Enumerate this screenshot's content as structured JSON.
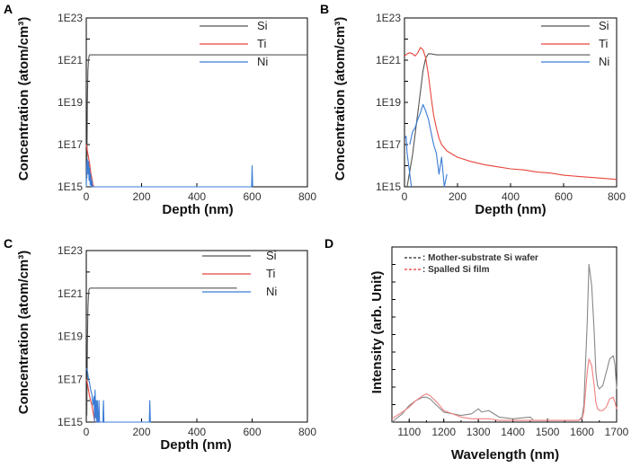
{
  "chart_data": [
    {
      "id": "A",
      "type": "line",
      "panel_label": "A",
      "xlabel": "Depth (nm)",
      "ylabel": "Concentration (atom/cm³)",
      "xlim": [
        0,
        800
      ],
      "ylim_log10": [
        15,
        23
      ],
      "x_ticks": [
        "0",
        "200",
        "400",
        "600",
        "800"
      ],
      "y_ticks": [
        "1E15",
        "1E17",
        "1E19",
        "1E21",
        "1E23"
      ],
      "legend": [
        "Si",
        "Ti",
        "Ni"
      ],
      "series": [
        {
          "name": "Si",
          "color": "#555555",
          "x": [
            2,
            4,
            6,
            8,
            10,
            12,
            15,
            20,
            40,
            100,
            300,
            500,
            700,
            800
          ],
          "log10_y": [
            15.4,
            19.0,
            20.5,
            21.0,
            21.2,
            21.25,
            21.25,
            21.25,
            21.25,
            21.25,
            21.25,
            21.25,
            21.25,
            21.25
          ]
        },
        {
          "name": "Ti",
          "color": "#e8453c",
          "x": [
            0,
            4,
            8,
            12,
            16,
            20,
            24,
            28
          ],
          "log10_y": [
            17.0,
            16.7,
            16.4,
            16.1,
            15.7,
            15.4,
            15.1,
            15.0
          ]
        },
        {
          "name": "Ni",
          "color": "#3a7bd5",
          "x": [
            0,
            2,
            4,
            6,
            8,
            10,
            12,
            14,
            16,
            18,
            20,
            22,
            24,
            598,
            600,
            602
          ],
          "log10_y": [
            15.0,
            16.1,
            16.3,
            15.6,
            16.2,
            15.3,
            15.9,
            15.1,
            15.6,
            15.0,
            15.3,
            15.0,
            15.0,
            15.0,
            16.0,
            15.0
          ]
        }
      ]
    },
    {
      "id": "B",
      "type": "line",
      "panel_label": "B",
      "xlabel": "Depth (nm)",
      "ylabel": "Concentration (atom/cm³)",
      "xlim": [
        0,
        800
      ],
      "ylim_log10": [
        15,
        23
      ],
      "x_ticks": [
        "0",
        "200",
        "400",
        "600",
        "800"
      ],
      "y_ticks": [
        "1E15",
        "1E17",
        "1E19",
        "1E21",
        "1E23"
      ],
      "legend": [
        "Si",
        "Ti",
        "Ni"
      ],
      "series": [
        {
          "name": "Si",
          "color": "#555555",
          "x": [
            10,
            30,
            50,
            60,
            70,
            80,
            90,
            100,
            120,
            200,
            400,
            600,
            700
          ],
          "log10_y": [
            15.0,
            16.5,
            18.5,
            19.5,
            20.5,
            21.1,
            21.3,
            21.3,
            21.25,
            21.25,
            21.25,
            21.25,
            21.25
          ]
        },
        {
          "name": "Ti",
          "color": "#e8453c",
          "x": [
            0,
            10,
            20,
            30,
            40,
            50,
            60,
            70,
            80,
            90,
            100,
            110,
            120,
            130,
            140,
            160,
            180,
            200,
            250,
            300,
            350,
            400,
            450,
            500,
            550,
            600,
            650,
            700,
            750,
            800
          ],
          "log10_y": [
            21.2,
            21.3,
            21.35,
            21.3,
            21.2,
            21.35,
            21.6,
            21.5,
            21.1,
            20.3,
            19.3,
            18.4,
            17.8,
            17.3,
            17.0,
            16.7,
            16.55,
            16.4,
            16.2,
            16.05,
            15.95,
            15.85,
            15.8,
            15.7,
            15.65,
            15.55,
            15.5,
            15.45,
            15.4,
            15.35
          ]
        },
        {
          "name": "Ni",
          "color": "#3a7bd5",
          "x": [
            20,
            30,
            40,
            50,
            60,
            70,
            80,
            90,
            100,
            110,
            120,
            130,
            140,
            150,
            160
          ],
          "log10_y": [
            17.0,
            17.6,
            17.8,
            18.2,
            18.5,
            18.9,
            18.6,
            18.2,
            17.6,
            17.0,
            16.6,
            15.6,
            16.4,
            15.0,
            15.6
          ]
        },
        {
          "name": "Ni",
          "color": "#3a7bd5",
          "x": [
            2,
            6,
            10,
            14,
            18,
            22,
            26
          ],
          "log10_y": [
            17.3,
            17.4,
            16.6,
            16.2,
            15.8,
            15.4,
            15.0
          ]
        }
      ]
    },
    {
      "id": "C",
      "type": "line",
      "panel_label": "C",
      "xlabel": "Depth (nm)",
      "ylabel": "Concentration (atom/cm³)",
      "xlim": [
        0,
        800
      ],
      "ylim_log10": [
        15,
        23
      ],
      "x_ticks": [
        "0",
        "200",
        "400",
        "600",
        "800"
      ],
      "y_ticks": [
        "1E15",
        "1E17",
        "1E19",
        "1E21",
        "1E23"
      ],
      "legend": [
        "Si",
        "Ti",
        "Ni"
      ],
      "series": [
        {
          "name": "Si",
          "color": "#555555",
          "x": [
            2,
            4,
            6,
            8,
            10,
            14,
            20,
            40,
            100,
            300,
            500,
            545
          ],
          "log10_y": [
            15.3,
            18.5,
            20.3,
            21.0,
            21.2,
            21.25,
            21.25,
            21.25,
            21.25,
            21.25,
            21.25,
            21.25
          ]
        },
        {
          "name": "Ti",
          "color": "#e8453c",
          "x": [
            0,
            4,
            8,
            12,
            16,
            20,
            24,
            28,
            32
          ],
          "log10_y": [
            17.0,
            16.8,
            16.5,
            16.2,
            16.0,
            15.8,
            15.5,
            15.2,
            15.0
          ]
        },
        {
          "name": "Ni",
          "color": "#3a7bd5",
          "x": [
            0,
            4,
            8,
            12,
            16,
            20,
            24,
            28,
            30,
            32,
            34,
            36,
            38,
            40,
            42,
            44,
            46,
            48,
            60,
            62,
            64,
            228,
            230,
            232,
            234
          ],
          "log10_y": [
            17.5,
            17.4,
            17.0,
            16.8,
            16.5,
            16.3,
            15.8,
            16.2,
            15.0,
            16.5,
            15.2,
            16.0,
            15.0,
            16.0,
            15.0,
            15.0,
            16.0,
            15.0,
            15.0,
            16.0,
            15.0,
            15.0,
            16.0,
            15.0,
            15.0
          ]
        }
      ]
    },
    {
      "id": "D",
      "type": "line",
      "panel_label": "D",
      "xlabel": "Wavelength (nm)",
      "ylabel": "Intensity (arb. Unit)",
      "xlim": [
        1050,
        1700
      ],
      "x_ticks": [
        "1100",
        "1200",
        "1300",
        "1400",
        "1500",
        "1600",
        "1700"
      ],
      "legend": [
        ": Mother-substrate Si wafer",
        ": Spalled Si film"
      ],
      "series": [
        {
          "name": ": Mother-substrate Si wafer",
          "color": "#888888",
          "x": [
            1050,
            1080,
            1100,
            1120,
            1140,
            1150,
            1160,
            1180,
            1200,
            1250,
            1280,
            1300,
            1310,
            1330,
            1360,
            1400,
            1450,
            1460,
            1500,
            1550,
            1590,
            1600,
            1605,
            1615,
            1620,
            1628,
            1635,
            1640,
            1645,
            1650,
            1660,
            1670,
            1680,
            1690,
            1695,
            1700
          ],
          "y": [
            0.0,
            0.05,
            0.1,
            0.13,
            0.15,
            0.15,
            0.14,
            0.1,
            0.06,
            0.04,
            0.05,
            0.08,
            0.06,
            0.07,
            0.03,
            0.02,
            0.03,
            0.01,
            0.01,
            0.01,
            0.01,
            0.03,
            0.1,
            0.6,
            0.95,
            0.82,
            0.55,
            0.3,
            0.22,
            0.2,
            0.22,
            0.3,
            0.38,
            0.4,
            0.35,
            0.2
          ]
        },
        {
          "name": ": Spalled Si film",
          "color": "#f08080",
          "x": [
            1050,
            1080,
            1100,
            1120,
            1140,
            1150,
            1160,
            1180,
            1200,
            1250,
            1280,
            1300,
            1330,
            1360,
            1400,
            1450,
            1500,
            1550,
            1590,
            1600,
            1605,
            1615,
            1620,
            1628,
            1635,
            1640,
            1645,
            1650,
            1660,
            1670,
            1680,
            1690,
            1695,
            1700
          ],
          "y": [
            0.02,
            0.06,
            0.09,
            0.13,
            0.16,
            0.17,
            0.16,
            0.12,
            0.07,
            0.03,
            0.02,
            0.02,
            0.02,
            0.01,
            0.01,
            0.01,
            0.01,
            0.01,
            0.01,
            0.02,
            0.06,
            0.3,
            0.38,
            0.34,
            0.22,
            0.12,
            0.08,
            0.07,
            0.07,
            0.09,
            0.14,
            0.15,
            0.12,
            0.08
          ]
        }
      ]
    }
  ]
}
